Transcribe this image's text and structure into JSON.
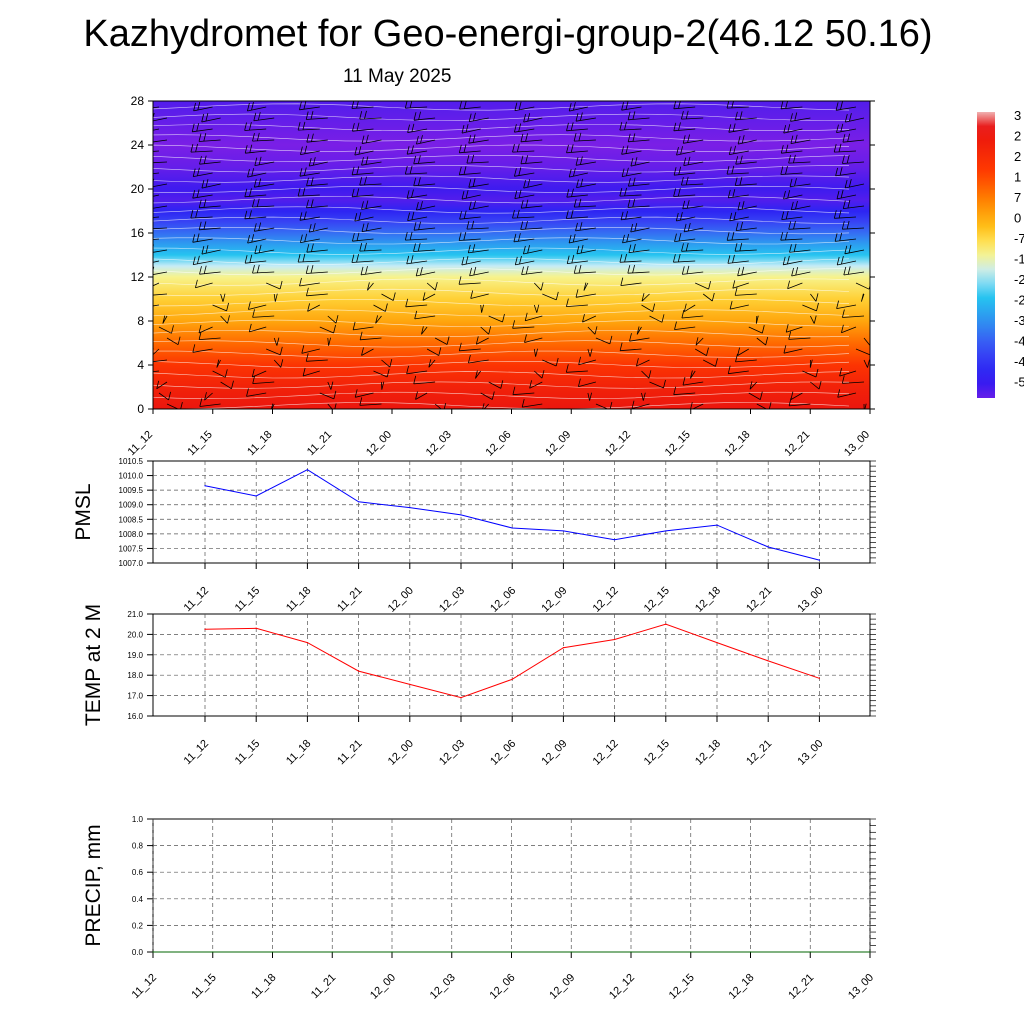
{
  "title": "Kazhydromet for Geo-energi-group-2(46.12 50.16)",
  "subtitle": "11 May 2025",
  "colors": {
    "pmsl_line": "#0000ff",
    "temp_line": "#ff0000",
    "precip_line": "#006400",
    "grid": "#555555",
    "barb": "#000000",
    "contour_line": "#ffffff"
  },
  "chart_data": [
    {
      "type": "heatmap",
      "name": "vertical-cross-section",
      "x_labels": [
        "11_12",
        "11_15",
        "11_18",
        "11_21",
        "12_00",
        "12_03",
        "12_06",
        "12_09",
        "12_12",
        "12_15",
        "12_18",
        "12_21",
        "13_00"
      ],
      "y_ticks": [
        0,
        4,
        8,
        12,
        16,
        20,
        24,
        28
      ],
      "ylim": [
        0,
        28
      ],
      "colorbar_labels": [
        "3",
        "2",
        "2",
        "1",
        "7",
        "0",
        "-7",
        "-1",
        "-2",
        "-2",
        "-3",
        "-4",
        "-4",
        "-5"
      ],
      "colorbar_range": [
        -56,
        35
      ],
      "profile_levels": [
        0,
        2,
        4,
        6,
        8,
        10,
        12,
        13,
        14,
        15,
        16,
        17,
        18,
        19,
        20,
        22,
        24,
        26,
        28
      ],
      "profile_values": [
        28,
        24,
        18,
        10,
        2,
        -4,
        -10,
        -16,
        -24,
        -30,
        -36,
        -42,
        -48,
        -54,
        -52,
        -56,
        -58,
        -56,
        -54
      ],
      "wind_barbs": "present",
      "contour_lines": "white"
    },
    {
      "type": "line",
      "name": "pmsl",
      "ylabel": "PMSL",
      "x_labels": [
        "11_12",
        "11_15",
        "11_18",
        "11_21",
        "12_00",
        "12_03",
        "12_06",
        "12_09",
        "12_12",
        "12_15",
        "12_18",
        "12_21",
        "13_00"
      ],
      "ylim": [
        1007.0,
        1010.5
      ],
      "y_ticks": [
        "1010.5",
        "1010.0",
        "1009.5",
        "1009.0",
        "1008.5",
        "1008.0",
        "1007.5",
        "1007.0"
      ],
      "series": [
        {
          "color": "#0000ff",
          "values": [
            1009.65,
            1009.3,
            1010.2,
            1009.1,
            1008.9,
            1008.65,
            1008.2,
            1008.1,
            1007.8,
            1008.1,
            1008.3,
            1007.55,
            1007.1
          ]
        }
      ],
      "grid": true
    },
    {
      "type": "line",
      "name": "temperature-2m",
      "ylabel": "TEMP at 2 M",
      "x_labels": [
        "11_12",
        "11_15",
        "11_18",
        "11_21",
        "12_00",
        "12_03",
        "12_06",
        "12_09",
        "12_12",
        "12_15",
        "12_18",
        "12_21",
        "13_00"
      ],
      "ylim": [
        16.0,
        21.0
      ],
      "y_ticks": [
        "21.0",
        "20.0",
        "19.0",
        "18.0",
        "17.0",
        "16.0"
      ],
      "series": [
        {
          "color": "#ff0000",
          "values": [
            20.25,
            20.3,
            19.6,
            18.2,
            17.55,
            16.9,
            17.8,
            19.35,
            19.75,
            20.5,
            19.6,
            18.7,
            17.85
          ]
        }
      ],
      "grid": true
    },
    {
      "type": "line",
      "name": "precipitation",
      "ylabel": "PRECIP, mm",
      "x_labels": [
        "11_12",
        "11_15",
        "11_18",
        "11_21",
        "12_00",
        "12_03",
        "12_06",
        "12_09",
        "12_12",
        "12_15",
        "12_18",
        "12_21",
        "13_00"
      ],
      "ylim": [
        0.0,
        1.0
      ],
      "y_ticks": [
        "1.0",
        "0.8",
        "0.6",
        "0.4",
        "0.2",
        "0.0"
      ],
      "series": [
        {
          "color": "#006400",
          "values": [
            0,
            0,
            0,
            0,
            0,
            0,
            0,
            0,
            0,
            0,
            0,
            0,
            0
          ]
        }
      ],
      "grid": true
    }
  ]
}
